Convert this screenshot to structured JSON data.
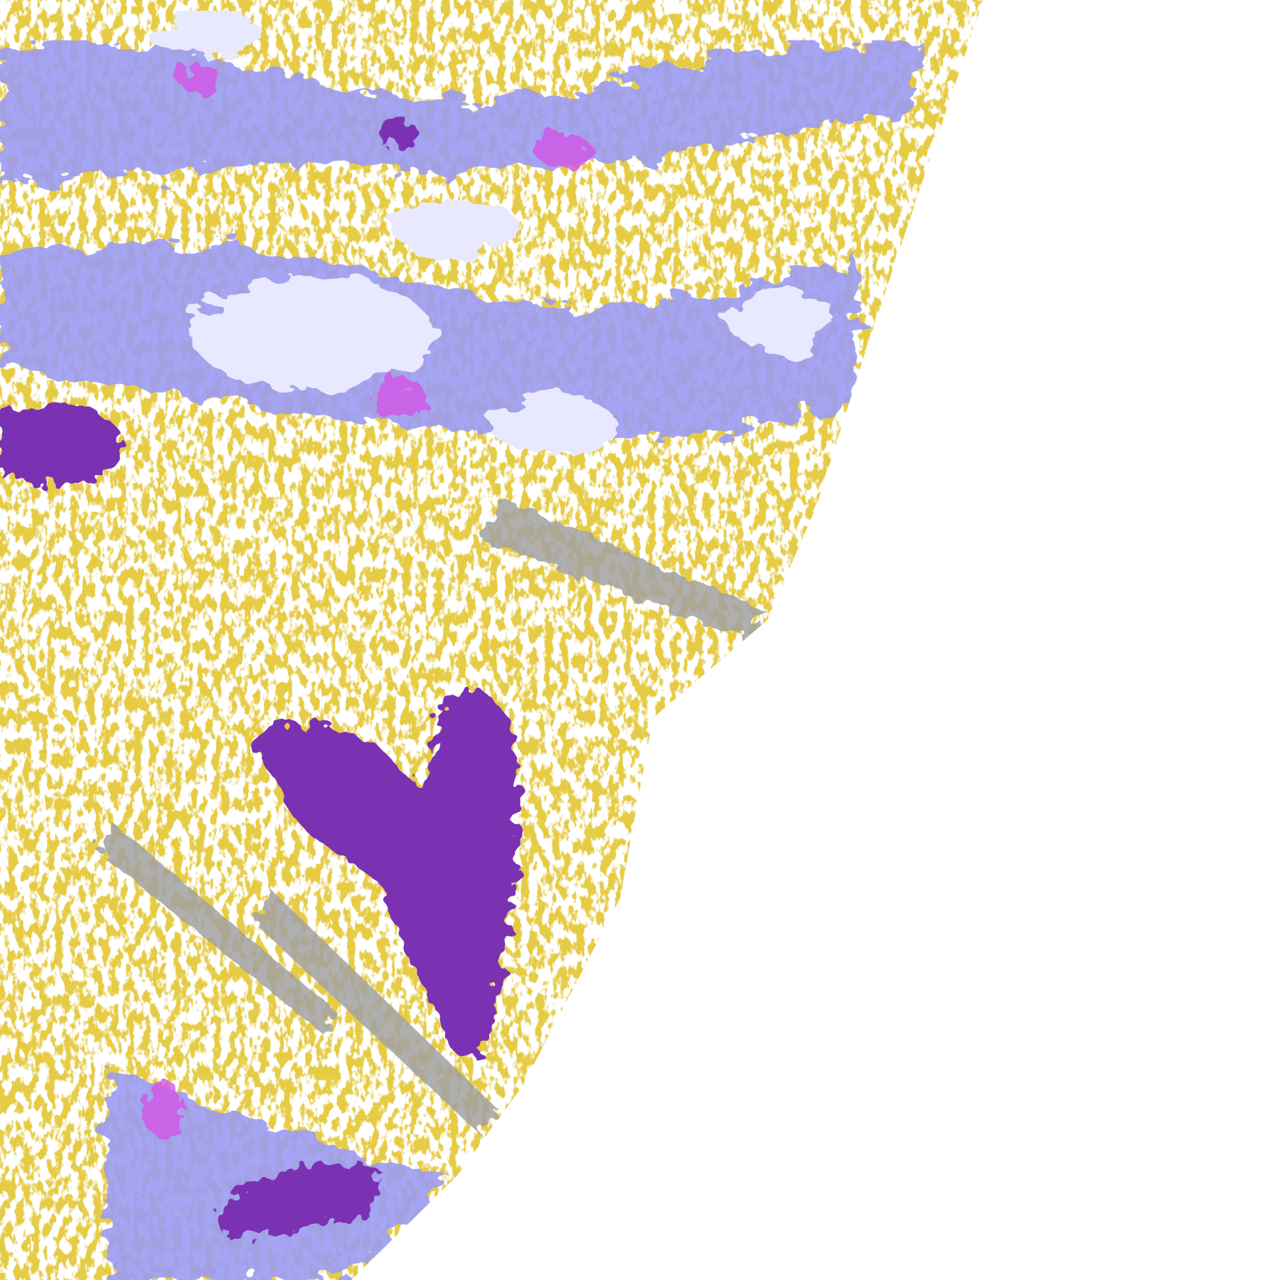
{
  "map": {
    "background": "#ffffff",
    "colors": {
      "gold": "#c9980f",
      "purple": "#7a33b3",
      "lavender": "#9c9cf2",
      "pale_lavender": "#e6e6ff",
      "gray": "#9e9e9e",
      "magenta": "#d455e6"
    }
  }
}
